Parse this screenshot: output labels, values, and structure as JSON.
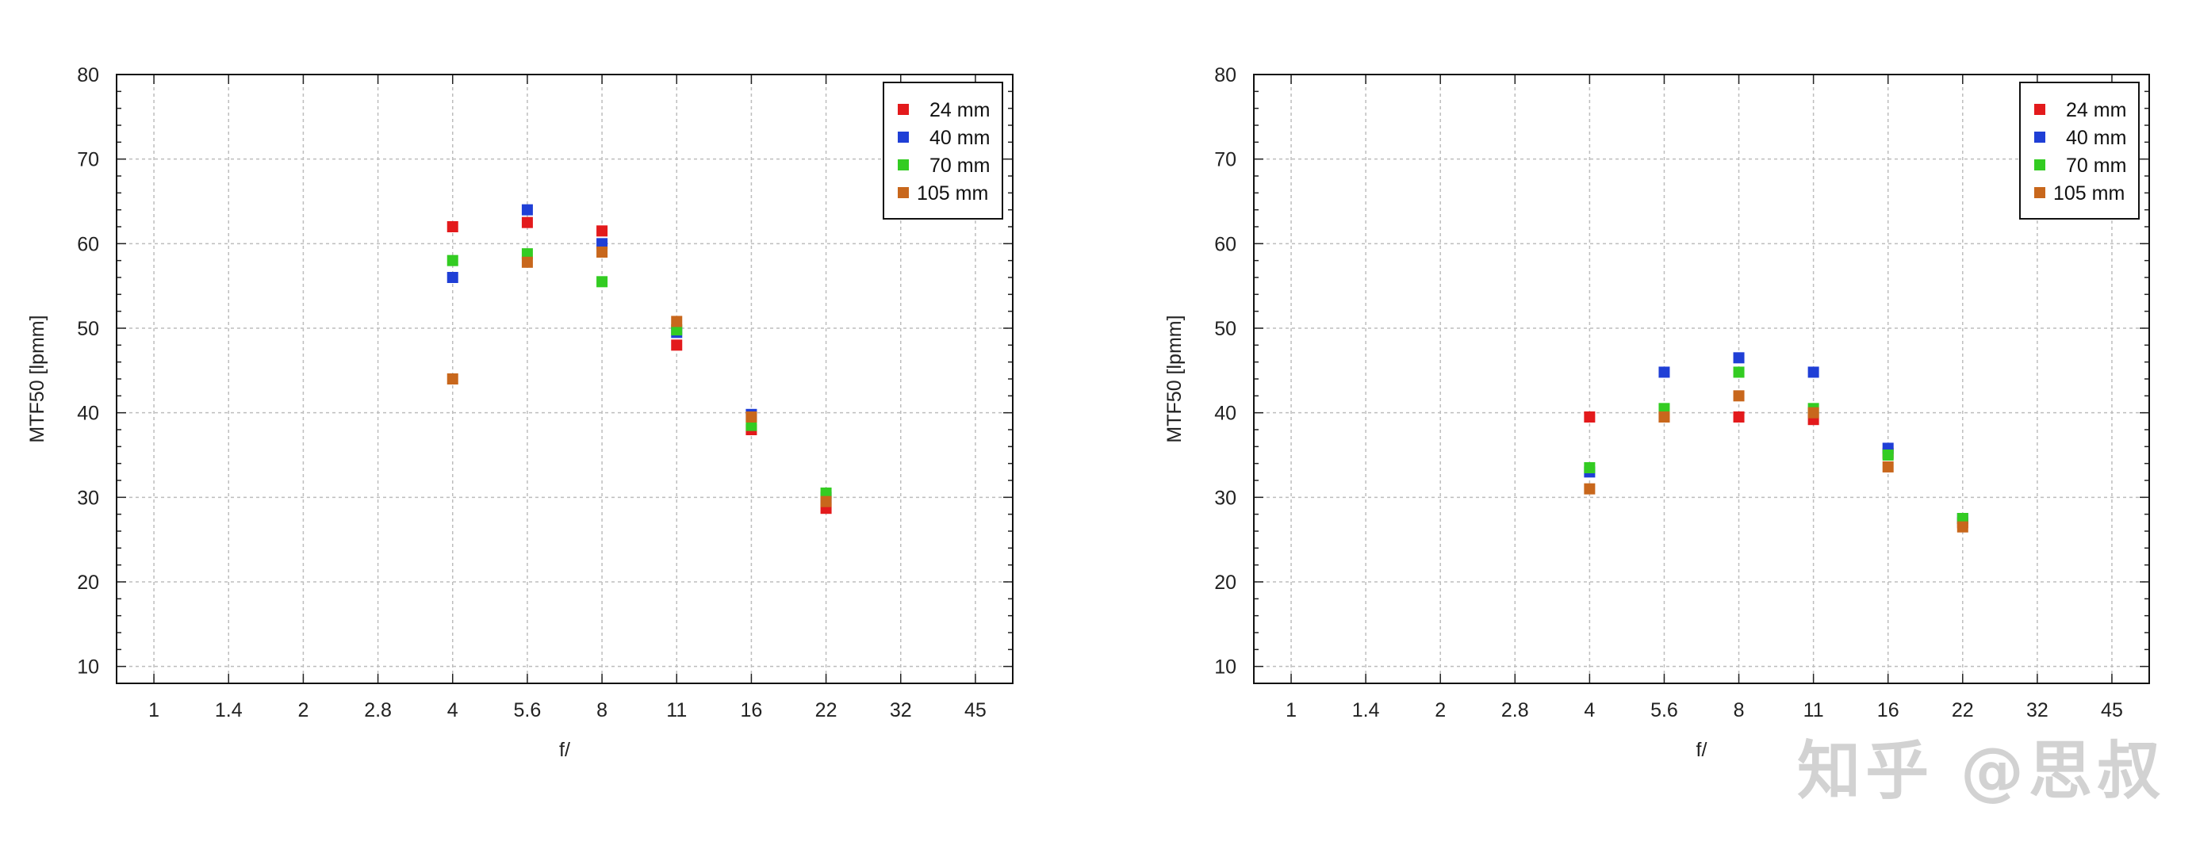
{
  "chart_data": [
    {
      "type": "scatter",
      "title": "",
      "xlabel": "f/",
      "ylabel": "MTF50 [lpmm]",
      "x_categories": [
        "1",
        "1.4",
        "2",
        "2.8",
        "4",
        "5.6",
        "8",
        "11",
        "16",
        "22",
        "32",
        "45"
      ],
      "ylim": [
        8,
        80
      ],
      "yticks": [
        10,
        20,
        30,
        40,
        50,
        60,
        70,
        80
      ],
      "grid": true,
      "legend_position": "top-right",
      "series": [
        {
          "name": "24 mm",
          "color": "#e31a1c",
          "points": [
            [
              "4",
              62
            ],
            [
              "5.6",
              62.5
            ],
            [
              "8",
              61.5
            ],
            [
              "11",
              48
            ],
            [
              "16",
              38
            ],
            [
              "22",
              28.7
            ]
          ]
        },
        {
          "name": "40 mm",
          "color": "#1f3fd6",
          "points": [
            [
              "4",
              56
            ],
            [
              "5.6",
              64
            ],
            [
              "8",
              60
            ],
            [
              "11",
              49.5
            ],
            [
              "16",
              39.8
            ],
            [
              "22",
              30
            ]
          ]
        },
        {
          "name": "70 mm",
          "color": "#33cc22",
          "points": [
            [
              "4",
              58
            ],
            [
              "5.6",
              58.8
            ],
            [
              "8",
              55.5
            ],
            [
              "11",
              49.8
            ],
            [
              "16",
              38.5
            ],
            [
              "22",
              30.5
            ]
          ]
        },
        {
          "name": "105 mm",
          "color": "#c8671c",
          "points": [
            [
              "4",
              44
            ],
            [
              "5.6",
              57.8
            ],
            [
              "8",
              59
            ],
            [
              "11",
              50.8
            ],
            [
              "16",
              39.5
            ],
            [
              "22",
              29.5
            ]
          ]
        }
      ]
    },
    {
      "type": "scatter",
      "title": "",
      "xlabel": "f/",
      "ylabel": "MTF50 [lpmm]",
      "x_categories": [
        "1",
        "1.4",
        "2",
        "2.8",
        "4",
        "5.6",
        "8",
        "11",
        "16",
        "22",
        "32",
        "45"
      ],
      "ylim": [
        8,
        80
      ],
      "yticks": [
        10,
        20,
        30,
        40,
        50,
        60,
        70,
        80
      ],
      "grid": true,
      "legend_position": "top-right",
      "series": [
        {
          "name": "24 mm",
          "color": "#e31a1c",
          "points": [
            [
              "4",
              39.5
            ],
            [
              "5.6",
              39.5
            ],
            [
              "8",
              39.5
            ],
            [
              "11",
              39.2
            ],
            [
              "16",
              35.2
            ],
            [
              "22",
              27
            ]
          ]
        },
        {
          "name": "40 mm",
          "color": "#1f3fd6",
          "points": [
            [
              "4",
              33
            ],
            [
              "5.6",
              44.8
            ],
            [
              "8",
              46.5
            ],
            [
              "11",
              44.8
            ],
            [
              "16",
              35.8
            ],
            [
              "22",
              27.5
            ]
          ]
        },
        {
          "name": "70 mm",
          "color": "#33cc22",
          "points": [
            [
              "4",
              33.5
            ],
            [
              "5.6",
              40.5
            ],
            [
              "8",
              44.8
            ],
            [
              "11",
              40.5
            ],
            [
              "16",
              35
            ],
            [
              "22",
              27.5
            ]
          ]
        },
        {
          "name": "105 mm",
          "color": "#c8671c",
          "points": [
            [
              "4",
              31
            ],
            [
              "5.6",
              39.5
            ],
            [
              "8",
              42
            ],
            [
              "11",
              40
            ],
            [
              "16",
              33.6
            ],
            [
              "22",
              26.5
            ]
          ]
        }
      ]
    }
  ],
  "watermark": {
    "text": "知乎 @思叔"
  }
}
